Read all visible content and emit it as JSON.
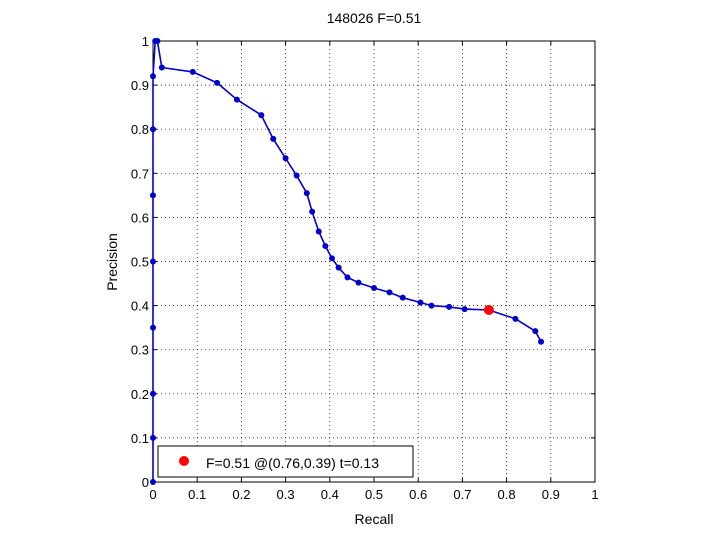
{
  "chart_data": {
    "type": "line",
    "title": "148026 F=0.51",
    "xlabel": "Recall",
    "ylabel": "Precision",
    "xlim": [
      0,
      1
    ],
    "ylim": [
      0,
      1
    ],
    "xticks": [
      "0",
      "0.1",
      "0.2",
      "0.3",
      "0.4",
      "0.5",
      "0.6",
      "0.7",
      "0.8",
      "0.9",
      "1"
    ],
    "yticks": [
      "0",
      "0.1",
      "0.2",
      "0.3",
      "0.4",
      "0.5",
      "0.6",
      "0.7",
      "0.8",
      "0.9",
      "1"
    ],
    "grid": true,
    "legend_position": "bottom-left",
    "series_color": "#0000cc",
    "marker_color": "#ff0000",
    "series": [
      {
        "points": [
          [
            0.0,
            0.0
          ],
          [
            0.0,
            0.1
          ],
          [
            0.0,
            0.2
          ],
          [
            0.0,
            0.35
          ],
          [
            0.0,
            0.5
          ],
          [
            0.0,
            0.65
          ],
          [
            0.0,
            0.8
          ],
          [
            0.0,
            0.92
          ],
          [
            0.005,
            1.0
          ],
          [
            0.01,
            1.0
          ],
          [
            0.02,
            0.94
          ],
          [
            0.09,
            0.93
          ],
          [
            0.145,
            0.905
          ],
          [
            0.19,
            0.867
          ],
          [
            0.245,
            0.832
          ],
          [
            0.272,
            0.778
          ],
          [
            0.3,
            0.734
          ],
          [
            0.325,
            0.695
          ],
          [
            0.348,
            0.655
          ],
          [
            0.36,
            0.613
          ],
          [
            0.375,
            0.568
          ],
          [
            0.39,
            0.535
          ],
          [
            0.405,
            0.507
          ],
          [
            0.42,
            0.486
          ],
          [
            0.44,
            0.464
          ],
          [
            0.465,
            0.452
          ],
          [
            0.5,
            0.44
          ],
          [
            0.535,
            0.43
          ],
          [
            0.565,
            0.418
          ],
          [
            0.605,
            0.407
          ],
          [
            0.63,
            0.4
          ],
          [
            0.67,
            0.397
          ],
          [
            0.705,
            0.392
          ],
          [
            0.76,
            0.39
          ],
          [
            0.82,
            0.37
          ],
          [
            0.865,
            0.342
          ],
          [
            0.878,
            0.318
          ]
        ]
      }
    ],
    "optimal_point": {
      "recall": 0.76,
      "precision": 0.39
    },
    "legend": "F=0.51 @(0.76,0.39) t=0.13"
  }
}
